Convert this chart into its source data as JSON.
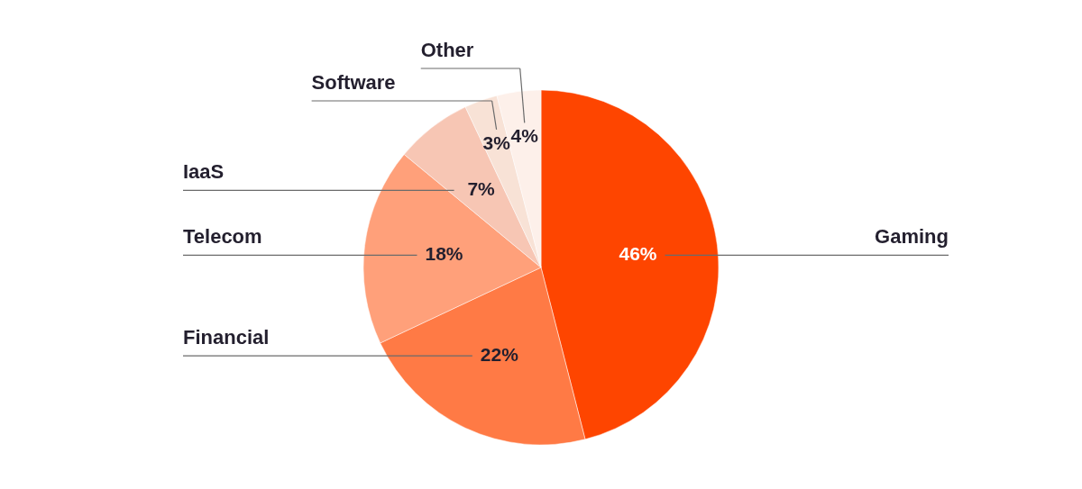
{
  "chart_data": {
    "type": "pie",
    "categories": [
      "Gaming",
      "Financial",
      "Telecom",
      "IaaS",
      "Software",
      "Other"
    ],
    "values": [
      46,
      22,
      18,
      7,
      3,
      4
    ],
    "value_labels": [
      "46%",
      "22%",
      "18%",
      "7%",
      "3%",
      "4%"
    ],
    "colors": [
      "#fe4500",
      "#ff7a45",
      "#ffa07a",
      "#f7c6b4",
      "#f8e2d6",
      "#fdf0ea"
    ]
  }
}
